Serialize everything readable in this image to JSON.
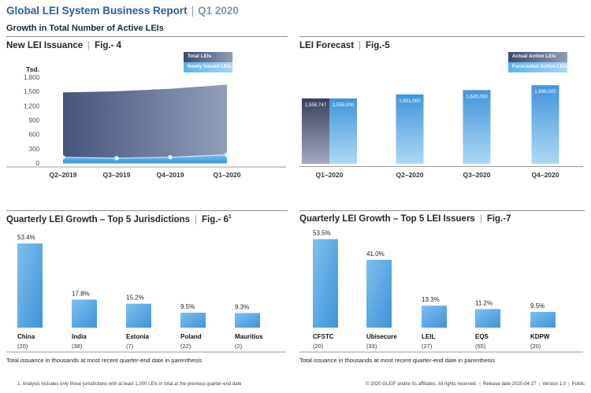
{
  "ui": {
    "sep": "|"
  },
  "header": {
    "title": "Global LEI System Business Report",
    "period": "Q1 2020",
    "subtitle": "Growth in Total Number of Active LEIs"
  },
  "colors": {
    "title_blue": "#2d5e97",
    "subtitle_navy": "#16243e",
    "bar_blue_light": "#7fc0ec",
    "bar_blue_dark": "#3f92da",
    "area_dark_left": "#47547c",
    "area_dark_right": "#919eba",
    "actual_bar_top": "#39415c",
    "actual_bar_bottom": "#a4a8c2",
    "forecast_bar_top": "#4195dc",
    "forecast_bar_bottom": "#aed8f4"
  },
  "chart_data": [
    {
      "id": "fig4",
      "type": "area",
      "title": "New LEI Issuance",
      "fig_label": "Fig.- 4",
      "unit_label": "Tsd.",
      "x": [
        "Q2–2019",
        "Q3–2019",
        "Q4–2019",
        "Q1–2020"
      ],
      "series": [
        {
          "name": "Total LEIs",
          "values": [
            1480,
            1505,
            1555,
            1645
          ]
        },
        {
          "name": "Newly Issued LEIs",
          "values": [
            40,
            34,
            40,
            58
          ]
        }
      ],
      "ylim": [
        0,
        1800
      ],
      "yticks": [
        1800,
        1500,
        1200,
        900,
        600,
        300,
        0
      ],
      "grid": false,
      "legend_position": "top-right"
    },
    {
      "id": "fig5",
      "type": "bar",
      "title": "LEI Forecast",
      "fig_label": "Fig.-5",
      "x": [
        "Q1–2020",
        "Q2–2020",
        "Q3–2020",
        "Q4–2020"
      ],
      "series": [
        {
          "name": "Actual Active LEIs",
          "values": [
            1558747,
            null,
            null,
            null
          ]
        },
        {
          "name": "Forecasted Active LEIs",
          "values": [
            1559000,
            1601000,
            1645000,
            1696000
          ]
        }
      ],
      "bar_labels": true,
      "legend_position": "top-right"
    },
    {
      "id": "fig6",
      "type": "bar",
      "title": "Quarterly LEI Growth – Top 5 Jurisdictions",
      "fig_label": "Fig.- 6",
      "fig_superscript": "1",
      "categories": [
        "China",
        "India",
        "Estonia",
        "Poland",
        "Mauritius"
      ],
      "category_counts": [
        "(20)",
        "(38)",
        "(7)",
        "(22)",
        "(2)"
      ],
      "values": [
        53.4,
        17.8,
        15.2,
        9.5,
        9.3
      ],
      "value_suffix": "%",
      "footnote": "Total issuance in thousands at most recent quarter-end date in parenthesis"
    },
    {
      "id": "fig7",
      "type": "bar",
      "title": "Quarterly LEI Growth – Top 5 LEI Issuers",
      "fig_label": "Fig.-7",
      "categories": [
        "CFSTC",
        "Ubisecure",
        "LEIL",
        "EQS",
        "KDPW"
      ],
      "category_counts": [
        "(20)",
        "(33)",
        "(27)",
        "(55)",
        "(20)"
      ],
      "values": [
        53.5,
        41.0,
        13.3,
        11.2,
        9.5
      ],
      "value_suffix": "%",
      "footnote": "Total issuance in thousands at most recent quarter-end date in parenthesis"
    }
  ],
  "footer": {
    "note_left": "1. Analysis includes only those jurisdictions with at least 1,000 LEIs in total at the previous quarter-end date",
    "copyright": "© 2020 GLEIF and/or its affiliates. All rights reserved.",
    "release": "Release date 2020-04-27",
    "version": "Version 1.0",
    "visibility": "Public"
  }
}
